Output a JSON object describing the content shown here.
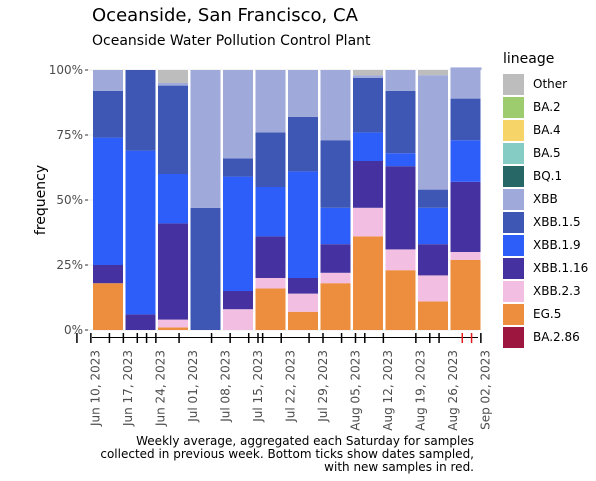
{
  "title": "Oceanside, San Francisco, CA",
  "subtitle": "Oceanside Water Pollution Control Plant",
  "caption": [
    "Weekly average, aggregated each Saturday for samples",
    "collected in previous week. Bottom ticks show dates sampled,",
    "with new samples in red."
  ],
  "chart_data": {
    "type": "bar",
    "stacked": true,
    "ylabel": "frequency",
    "yticks": [
      "0%",
      "25%",
      "50%",
      "75%",
      "100%"
    ],
    "ylim": [
      0,
      1
    ],
    "xticks": [
      {
        "label": "Jun 10, 2023",
        "x": "2023-06-10"
      },
      {
        "label": "Jun 17, 2023",
        "x": "2023-06-17"
      },
      {
        "label": "Jun 24, 2023",
        "x": "2023-06-24"
      },
      {
        "label": "Jul 01, 2023",
        "x": "2023-07-01"
      },
      {
        "label": "Jul 08, 2023",
        "x": "2023-07-08"
      },
      {
        "label": "Jul 15, 2023",
        "x": "2023-07-15"
      },
      {
        "label": "Jul 22, 2023",
        "x": "2023-07-22"
      },
      {
        "label": "Jul 29, 2023",
        "x": "2023-07-29"
      },
      {
        "label": "Aug 05, 2023",
        "x": "2023-08-05"
      },
      {
        "label": "Aug 12, 2023",
        "x": "2023-08-12"
      },
      {
        "label": "Aug 19, 2023",
        "x": "2023-08-19"
      },
      {
        "label": "Aug 26, 2023",
        "x": "2023-08-26"
      },
      {
        "label": "Sep 02, 2023",
        "x": "2023-09-02"
      }
    ],
    "legend": {
      "title": "lineage",
      "position": "right",
      "entries": [
        {
          "name": "Other",
          "color": "#bdbdbd"
        },
        {
          "name": "BA.2",
          "color": "#9ccc6e"
        },
        {
          "name": "BA.4",
          "color": "#f7d467"
        },
        {
          "name": "BA.5",
          "color": "#85cdc4"
        },
        {
          "name": "BQ.1",
          "color": "#276766"
        },
        {
          "name": "XBB",
          "color": "#9fa9da"
        },
        {
          "name": "XBB.1.5",
          "color": "#3f57b4"
        },
        {
          "name": "XBB.1.9",
          "color": "#2e5efa"
        },
        {
          "name": "XBB.1.16",
          "color": "#4532a0"
        },
        {
          "name": "XBB.2.3",
          "color": "#f2bfe3"
        },
        {
          "name": "EG.5",
          "color": "#ed8d3e"
        },
        {
          "name": "BA.2.86",
          "color": "#9c1640"
        }
      ]
    },
    "stack_order": [
      "EG.5",
      "XBB.2.3",
      "XBB.1.16",
      "XBB.1.9",
      "XBB.1.5",
      "XBB",
      "Other"
    ],
    "weeks": [
      {
        "date": "2023-06-10",
        "EG.5": 0.18,
        "XBB.2.3": 0.0,
        "XBB.1.16": 0.07,
        "XBB.1.9": 0.49,
        "XBB.1.5": 0.18,
        "XBB": 0.08,
        "Other": 0.0
      },
      {
        "date": "2023-06-17",
        "EG.5": 0.0,
        "XBB.2.3": 0.0,
        "XBB.1.16": 0.06,
        "XBB.1.9": 0.63,
        "XBB.1.5": 0.31,
        "XBB": 0.0,
        "Other": 0.0
      },
      {
        "date": "2023-06-24",
        "EG.5": 0.01,
        "XBB.2.3": 0.03,
        "XBB.1.16": 0.37,
        "XBB.1.9": 0.19,
        "XBB.1.5": 0.34,
        "XBB": 0.01,
        "Other": 0.05
      },
      {
        "date": "2023-07-01",
        "EG.5": 0.0,
        "XBB.2.3": 0.0,
        "XBB.1.16": 0.0,
        "XBB.1.9": 0.0,
        "XBB.1.5": 0.47,
        "XBB": 0.53,
        "Other": 0.0
      },
      {
        "date": "2023-07-08",
        "EG.5": 0.0,
        "XBB.2.3": 0.08,
        "XBB.1.16": 0.07,
        "XBB.1.9": 0.44,
        "XBB.1.5": 0.07,
        "XBB": 0.34,
        "Other": 0.0
      },
      {
        "date": "2023-07-15",
        "EG.5": 0.16,
        "XBB.2.3": 0.04,
        "XBB.1.16": 0.16,
        "XBB.1.9": 0.19,
        "XBB.1.5": 0.21,
        "XBB": 0.24,
        "Other": 0.0
      },
      {
        "date": "2023-07-22",
        "EG.5": 0.07,
        "XBB.2.3": 0.07,
        "XBB.1.16": 0.06,
        "XBB.1.9": 0.41,
        "XBB.1.5": 0.21,
        "XBB": 0.18,
        "Other": 0.0
      },
      {
        "date": "2023-07-29",
        "EG.5": 0.18,
        "XBB.2.3": 0.04,
        "XBB.1.16": 0.11,
        "XBB.1.9": 0.14,
        "XBB.1.5": 0.26,
        "XBB": 0.27,
        "Other": 0.0
      },
      {
        "date": "2023-08-05",
        "EG.5": 0.36,
        "XBB.2.3": 0.11,
        "XBB.1.16": 0.18,
        "XBB.1.9": 0.11,
        "XBB.1.5": 0.21,
        "XBB": 0.01,
        "Other": 0.02
      },
      {
        "date": "2023-08-12",
        "EG.5": 0.23,
        "XBB.2.3": 0.08,
        "XBB.1.16": 0.32,
        "XBB.1.9": 0.05,
        "XBB.1.5": 0.24,
        "XBB": 0.08,
        "Other": 0.0
      },
      {
        "date": "2023-08-19",
        "EG.5": 0.11,
        "XBB.2.3": 0.1,
        "XBB.1.16": 0.12,
        "XBB.1.9": 0.14,
        "XBB.1.5": 0.07,
        "XBB": 0.44,
        "Other": 0.02
      },
      {
        "date": "2023-08-26",
        "EG.5": 0.27,
        "XBB.2.3": 0.03,
        "XBB.1.16": 0.27,
        "XBB.1.9": 0.16,
        "XBB.1.5": 0.16,
        "XBB": 0.12,
        "Other": 0.0
      }
    ],
    "sample_dates": [
      {
        "date": "2023-06-06",
        "new": false
      },
      {
        "date": "2023-06-09",
        "new": false
      },
      {
        "date": "2023-06-13",
        "new": false
      },
      {
        "date": "2023-06-16",
        "new": false
      },
      {
        "date": "2023-06-19",
        "new": false
      },
      {
        "date": "2023-06-21",
        "new": false
      },
      {
        "date": "2023-06-23",
        "new": false
      },
      {
        "date": "2023-06-28",
        "new": false
      },
      {
        "date": "2023-07-05",
        "new": false
      },
      {
        "date": "2023-07-09",
        "new": false
      },
      {
        "date": "2023-07-13",
        "new": false
      },
      {
        "date": "2023-07-15",
        "new": false
      },
      {
        "date": "2023-07-16",
        "new": false
      },
      {
        "date": "2023-07-20",
        "new": false
      },
      {
        "date": "2023-07-26",
        "new": false
      },
      {
        "date": "2023-07-29",
        "new": false
      },
      {
        "date": "2023-08-02",
        "new": false
      },
      {
        "date": "2023-08-05",
        "new": false
      },
      {
        "date": "2023-08-07",
        "new": false
      },
      {
        "date": "2023-08-11",
        "new": false
      },
      {
        "date": "2023-08-18",
        "new": false
      },
      {
        "date": "2023-08-21",
        "new": false
      },
      {
        "date": "2023-08-23",
        "new": false
      },
      {
        "date": "2023-08-28",
        "new": true
      },
      {
        "date": "2023-08-30",
        "new": true
      },
      {
        "date": "2023-09-01",
        "new": false
      }
    ]
  }
}
